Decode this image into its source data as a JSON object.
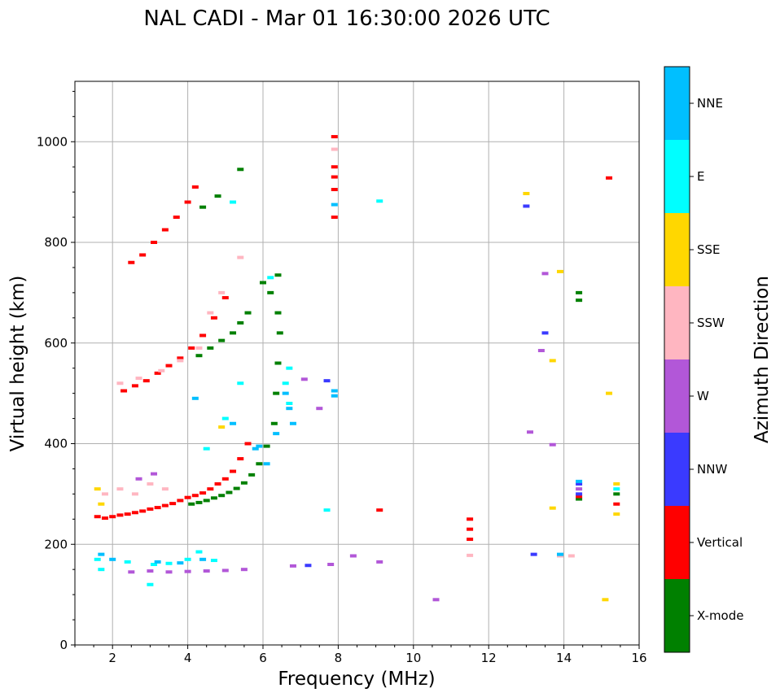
{
  "chart_data": {
    "type": "scatter",
    "title": "NAL CADI - Mar 01 16:30:00 2026 UTC",
    "xlabel": "Frequency (MHz)",
    "ylabel": "Virtual height (km)",
    "xlim": [
      1,
      16
    ],
    "ylim": [
      0,
      1120
    ],
    "xticks": [
      2,
      4,
      6,
      8,
      10,
      12,
      14,
      16
    ],
    "yticks": [
      0,
      200,
      400,
      600,
      800,
      1000
    ],
    "grid": true,
    "colorbar": {
      "label": "Azimuth Direction",
      "categories": [
        "X-mode",
        "Vertical",
        "NNW",
        "W",
        "SSW",
        "SSE",
        "E",
        "NNE"
      ],
      "colors": [
        "#008000",
        "#ff0000",
        "#3a3aff",
        "#b257d8",
        "#ffb6c1",
        "#ffd700",
        "#00ffff",
        "#00bfff"
      ]
    },
    "series": [
      {
        "name": "X-mode",
        "points": [
          [
            4.1,
            280
          ],
          [
            4.3,
            283
          ],
          [
            4.5,
            287
          ],
          [
            4.7,
            292
          ],
          [
            4.9,
            297
          ],
          [
            5.1,
            303
          ],
          [
            5.3,
            311
          ],
          [
            5.5,
            322
          ],
          [
            5.7,
            338
          ],
          [
            5.9,
            360
          ],
          [
            6.1,
            395
          ],
          [
            6.3,
            440
          ],
          [
            6.35,
            500
          ],
          [
            6.4,
            560
          ],
          [
            6.45,
            620
          ],
          [
            6.4,
            660
          ],
          [
            6.2,
            700
          ],
          [
            6.0,
            720
          ],
          [
            4.3,
            575
          ],
          [
            4.6,
            590
          ],
          [
            4.9,
            605
          ],
          [
            5.2,
            620
          ],
          [
            5.4,
            640
          ],
          [
            5.6,
            660
          ],
          [
            6.4,
            735
          ],
          [
            4.8,
            892
          ],
          [
            5.4,
            945
          ],
          [
            4.4,
            870
          ],
          [
            14.4,
            685
          ],
          [
            14.4,
            700
          ],
          [
            14.4,
            290
          ],
          [
            15.4,
            300
          ]
        ]
      },
      {
        "name": "Vertical",
        "points": [
          [
            1.6,
            255
          ],
          [
            1.8,
            252
          ],
          [
            2.0,
            255
          ],
          [
            2.2,
            258
          ],
          [
            2.4,
            260
          ],
          [
            2.6,
            263
          ],
          [
            2.8,
            266
          ],
          [
            3.0,
            270
          ],
          [
            3.2,
            273
          ],
          [
            3.4,
            277
          ],
          [
            3.6,
            281
          ],
          [
            3.8,
            287
          ],
          [
            4.0,
            293
          ],
          [
            4.2,
            297
          ],
          [
            4.4,
            302
          ],
          [
            4.6,
            310
          ],
          [
            4.8,
            320
          ],
          [
            5.0,
            330
          ],
          [
            5.2,
            345
          ],
          [
            5.4,
            370
          ],
          [
            5.6,
            400
          ],
          [
            2.3,
            505
          ],
          [
            2.6,
            515
          ],
          [
            2.9,
            525
          ],
          [
            3.2,
            540
          ],
          [
            3.5,
            555
          ],
          [
            3.8,
            570
          ],
          [
            4.1,
            590
          ],
          [
            4.4,
            615
          ],
          [
            4.7,
            650
          ],
          [
            5.0,
            690
          ],
          [
            2.5,
            760
          ],
          [
            2.8,
            775
          ],
          [
            3.1,
            800
          ],
          [
            3.4,
            825
          ],
          [
            3.7,
            850
          ],
          [
            4.0,
            880
          ],
          [
            4.2,
            910
          ],
          [
            7.9,
            1010
          ],
          [
            7.9,
            950
          ],
          [
            7.9,
            930
          ],
          [
            7.9,
            905
          ],
          [
            7.9,
            850
          ],
          [
            11.5,
            250
          ],
          [
            11.5,
            230
          ],
          [
            11.5,
            210
          ],
          [
            14.4,
            295
          ],
          [
            15.4,
            280
          ],
          [
            15.2,
            928
          ],
          [
            9.1,
            268
          ]
        ]
      },
      {
        "name": "NNW",
        "points": [
          [
            7.2,
            158
          ],
          [
            13.2,
            180
          ],
          [
            13.0,
            872
          ],
          [
            13.5,
            620
          ],
          [
            14.4,
            320
          ],
          [
            14.4,
            300
          ],
          [
            7.7,
            525
          ]
        ]
      },
      {
        "name": "W",
        "points": [
          [
            2.5,
            145
          ],
          [
            3.0,
            147
          ],
          [
            3.5,
            145
          ],
          [
            4.0,
            146
          ],
          [
            4.5,
            147
          ],
          [
            5.0,
            148
          ],
          [
            5.5,
            150
          ],
          [
            6.8,
            157
          ],
          [
            7.8,
            160
          ],
          [
            8.4,
            177
          ],
          [
            9.1,
            165
          ],
          [
            10.6,
            90
          ],
          [
            13.1,
            423
          ],
          [
            13.4,
            585
          ],
          [
            13.5,
            738
          ],
          [
            13.7,
            398
          ],
          [
            14.4,
            310
          ],
          [
            7.1,
            528
          ],
          [
            7.5,
            470
          ],
          [
            2.7,
            330
          ],
          [
            3.1,
            340
          ]
        ]
      },
      {
        "name": "SSW",
        "points": [
          [
            1.8,
            300
          ],
          [
            2.2,
            310
          ],
          [
            2.6,
            300
          ],
          [
            3.0,
            320
          ],
          [
            3.4,
            310
          ],
          [
            2.2,
            520
          ],
          [
            2.7,
            530
          ],
          [
            3.3,
            545
          ],
          [
            3.8,
            565
          ],
          [
            4.3,
            590
          ],
          [
            4.6,
            660
          ],
          [
            4.9,
            700
          ],
          [
            7.9,
            985
          ],
          [
            13.9,
            177
          ],
          [
            14.2,
            177
          ],
          [
            11.5,
            178
          ],
          [
            5.4,
            770
          ]
        ]
      },
      {
        "name": "SSE",
        "points": [
          [
            1.6,
            310
          ],
          [
            1.7,
            280
          ],
          [
            4.9,
            433
          ],
          [
            13.0,
            897
          ],
          [
            13.7,
            565
          ],
          [
            13.7,
            272
          ],
          [
            13.9,
            742
          ],
          [
            15.2,
            500
          ],
          [
            15.4,
            260
          ],
          [
            15.4,
            320
          ],
          [
            15.1,
            90
          ]
        ]
      },
      {
        "name": "E",
        "points": [
          [
            1.6,
            170
          ],
          [
            1.7,
            150
          ],
          [
            2.4,
            165
          ],
          [
            3.0,
            120
          ],
          [
            3.1,
            160
          ],
          [
            3.5,
            162
          ],
          [
            4.0,
            170
          ],
          [
            4.3,
            185
          ],
          [
            4.7,
            168
          ],
          [
            7.7,
            268
          ],
          [
            9.1,
            882
          ],
          [
            4.5,
            390
          ],
          [
            5.0,
            450
          ],
          [
            5.4,
            520
          ],
          [
            6.2,
            730
          ],
          [
            5.2,
            880
          ],
          [
            6.7,
            550
          ],
          [
            6.7,
            480
          ],
          [
            6.6,
            520
          ],
          [
            15.4,
            310
          ]
        ]
      },
      {
        "name": "NNE",
        "points": [
          [
            1.7,
            180
          ],
          [
            2.0,
            170
          ],
          [
            3.2,
            165
          ],
          [
            3.8,
            163
          ],
          [
            4.4,
            170
          ],
          [
            4.2,
            490
          ],
          [
            5.2,
            440
          ],
          [
            5.8,
            390
          ],
          [
            6.1,
            360
          ],
          [
            6.35,
            420
          ],
          [
            6.6,
            500
          ],
          [
            6.7,
            470
          ],
          [
            6.8,
            440
          ],
          [
            7.9,
            505
          ],
          [
            7.9,
            495
          ],
          [
            7.9,
            875
          ],
          [
            13.9,
            180
          ],
          [
            14.4,
            325
          ],
          [
            5.9,
            395
          ]
        ]
      }
    ]
  }
}
